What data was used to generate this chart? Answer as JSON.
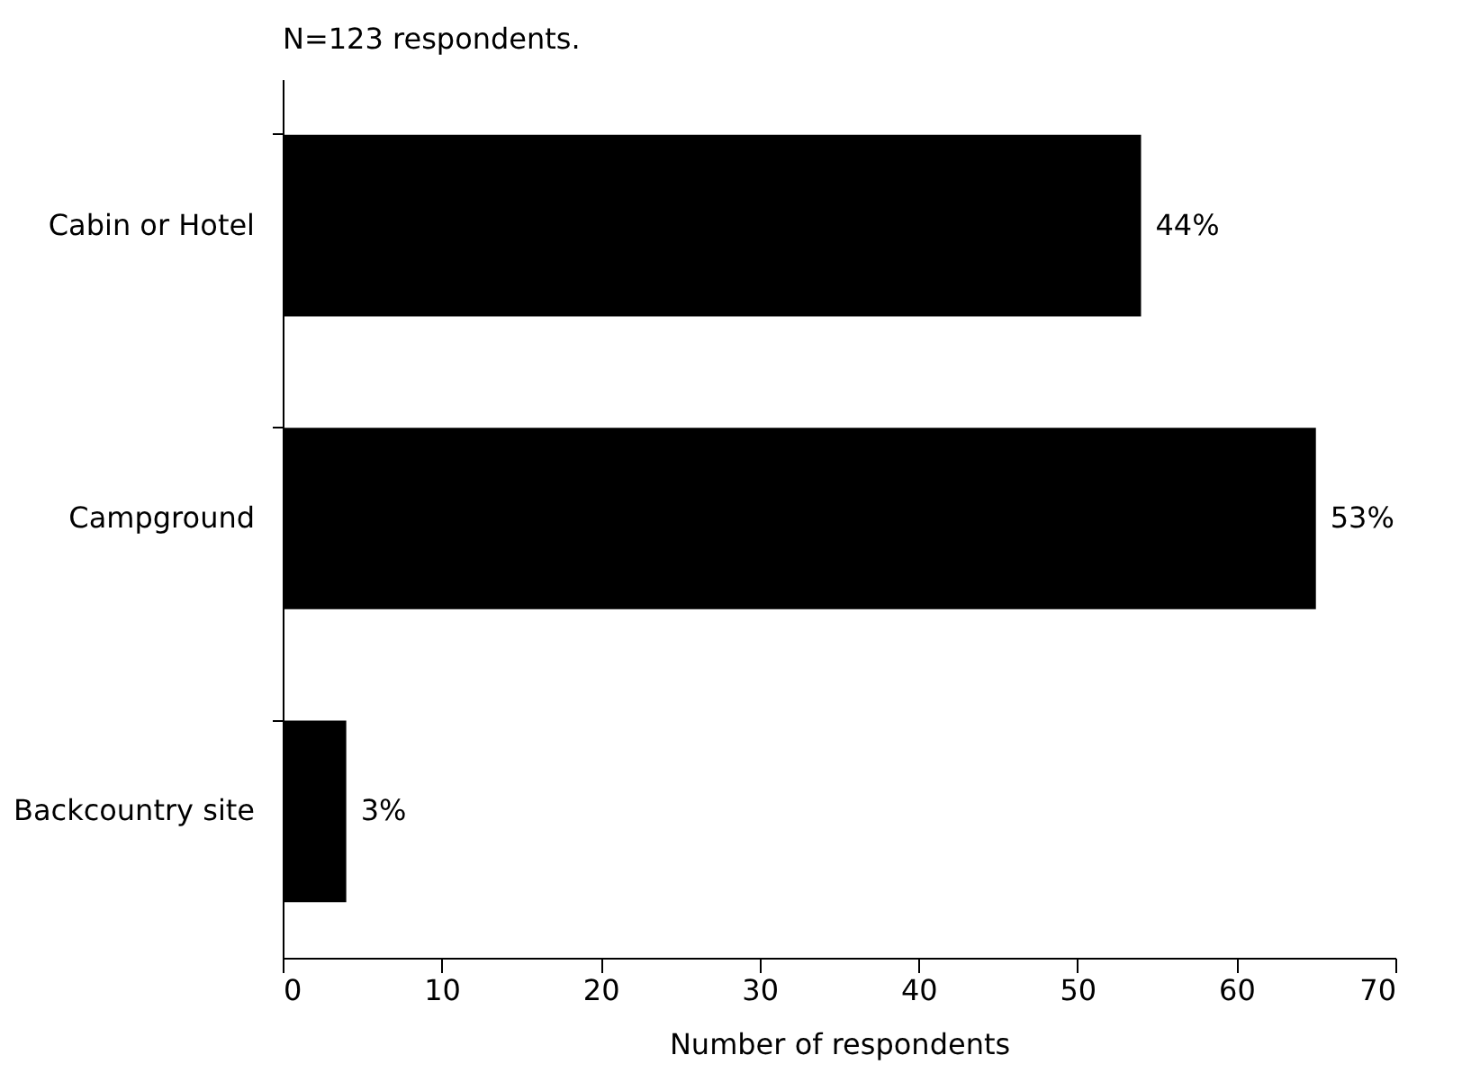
{
  "chart_data": {
    "type": "bar",
    "orientation": "horizontal",
    "title": "N=123 respondents.",
    "xlabel": "Number of respondents",
    "categories": [
      "Cabin or Hotel",
      "Campground",
      "Backcountry site"
    ],
    "values": [
      54,
      65,
      4
    ],
    "color": "#000000",
    "annotations": [
      {
        "text": "44%",
        "x": 54,
        "y": "Cabin or Hotel"
      },
      {
        "text": "53%",
        "x": 65,
        "y": "Campground"
      },
      {
        "text": "3%",
        "x": 4,
        "y": "Backcountry site"
      }
    ],
    "xlim": [
      0,
      70
    ],
    "xticks": [
      0,
      10,
      20,
      30,
      40,
      50,
      60,
      70
    ],
    "grid": false
  }
}
